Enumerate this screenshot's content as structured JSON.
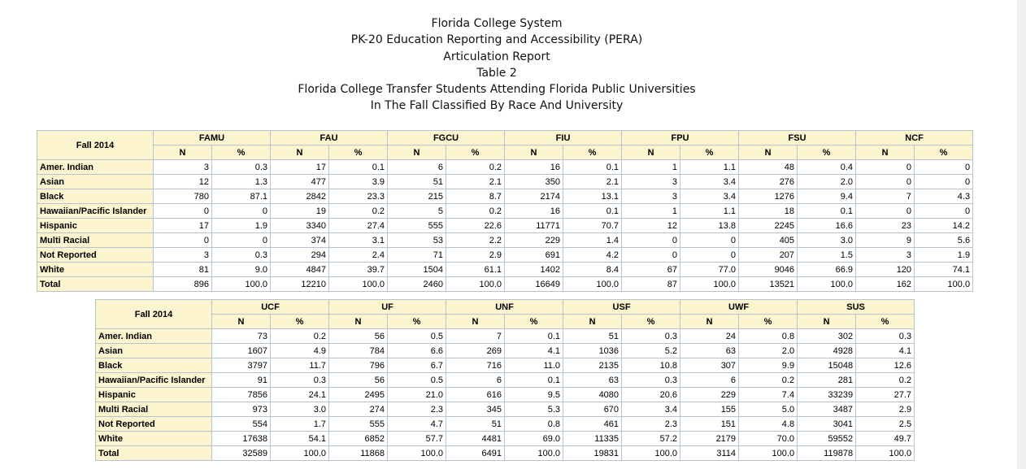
{
  "titles": [
    "Florida College System",
    "PK-20 Education Reporting and Accessibility (PERA)",
    "Articulation Report",
    "Table 2",
    "Florida College Transfer Students Attending Florida Public Universities",
    "In The Fall Classified By Race And University"
  ],
  "tables": [
    {
      "corner": "Fall 2014",
      "subheaders": [
        "N",
        "%"
      ],
      "universities": [
        "FAMU",
        "FAU",
        "FGCU",
        "FIU",
        "FPU",
        "FSU",
        "NCF"
      ],
      "rows": [
        {
          "label": "Amer. Indian",
          "values": [
            "3",
            "0.3",
            "17",
            "0.1",
            "6",
            "0.2",
            "16",
            "0.1",
            "1",
            "1.1",
            "48",
            "0.4",
            "0",
            "0"
          ]
        },
        {
          "label": "Asian",
          "values": [
            "12",
            "1.3",
            "477",
            "3.9",
            "51",
            "2.1",
            "350",
            "2.1",
            "3",
            "3.4",
            "276",
            "2.0",
            "0",
            "0"
          ]
        },
        {
          "label": "Black",
          "values": [
            "780",
            "87.1",
            "2842",
            "23.3",
            "215",
            "8.7",
            "2174",
            "13.1",
            "3",
            "3.4",
            "1276",
            "9.4",
            "7",
            "4.3"
          ]
        },
        {
          "label": "Hawaiian/Pacific Islander",
          "values": [
            "0",
            "0",
            "19",
            "0.2",
            "5",
            "0.2",
            "16",
            "0.1",
            "1",
            "1.1",
            "18",
            "0.1",
            "0",
            "0"
          ]
        },
        {
          "label": "Hispanic",
          "values": [
            "17",
            "1.9",
            "3340",
            "27.4",
            "555",
            "22.6",
            "11771",
            "70.7",
            "12",
            "13.8",
            "2245",
            "16.6",
            "23",
            "14.2"
          ]
        },
        {
          "label": "Multi Racial",
          "values": [
            "0",
            "0",
            "374",
            "3.1",
            "53",
            "2.2",
            "229",
            "1.4",
            "0",
            "0",
            "405",
            "3.0",
            "9",
            "5.6"
          ]
        },
        {
          "label": "Not Reported",
          "values": [
            "3",
            "0.3",
            "294",
            "2.4",
            "71",
            "2.9",
            "691",
            "4.2",
            "0",
            "0",
            "207",
            "1.5",
            "3",
            "1.9"
          ]
        },
        {
          "label": "White",
          "values": [
            "81",
            "9.0",
            "4847",
            "39.7",
            "1504",
            "61.1",
            "1402",
            "8.4",
            "67",
            "77.0",
            "9046",
            "66.9",
            "120",
            "74.1"
          ]
        },
        {
          "label": "Total",
          "values": [
            "896",
            "100.0",
            "12210",
            "100.0",
            "2460",
            "100.0",
            "16649",
            "100.0",
            "87",
            "100.0",
            "13521",
            "100.0",
            "162",
            "100.0"
          ]
        }
      ]
    },
    {
      "corner": "Fall 2014",
      "subheaders": [
        "N",
        "%"
      ],
      "universities": [
        "UCF",
        "UF",
        "UNF",
        "USF",
        "UWF",
        "SUS"
      ],
      "rows": [
        {
          "label": "Amer. Indian",
          "values": [
            "73",
            "0.2",
            "56",
            "0.5",
            "7",
            "0.1",
            "51",
            "0.3",
            "24",
            "0.8",
            "302",
            "0.3"
          ]
        },
        {
          "label": "Asian",
          "values": [
            "1607",
            "4.9",
            "784",
            "6.6",
            "269",
            "4.1",
            "1036",
            "5.2",
            "63",
            "2.0",
            "4928",
            "4.1"
          ]
        },
        {
          "label": "Black",
          "values": [
            "3797",
            "11.7",
            "796",
            "6.7",
            "716",
            "11.0",
            "2135",
            "10.8",
            "307",
            "9.9",
            "15048",
            "12.6"
          ]
        },
        {
          "label": "Hawaiian/Pacific Islander",
          "values": [
            "91",
            "0.3",
            "56",
            "0.5",
            "6",
            "0.1",
            "63",
            "0.3",
            "6",
            "0.2",
            "281",
            "0.2"
          ]
        },
        {
          "label": "Hispanic",
          "values": [
            "7856",
            "24.1",
            "2495",
            "21.0",
            "616",
            "9.5",
            "4080",
            "20.6",
            "229",
            "7.4",
            "33239",
            "27.7"
          ]
        },
        {
          "label": "Multi Racial",
          "values": [
            "973",
            "3.0",
            "274",
            "2.3",
            "345",
            "5.3",
            "670",
            "3.4",
            "155",
            "5.0",
            "3487",
            "2.9"
          ]
        },
        {
          "label": "Not Reported",
          "values": [
            "554",
            "1.7",
            "555",
            "4.7",
            "51",
            "0.8",
            "461",
            "2.3",
            "151",
            "4.8",
            "3041",
            "2.5"
          ]
        },
        {
          "label": "White",
          "values": [
            "17638",
            "54.1",
            "6852",
            "57.7",
            "4481",
            "69.0",
            "11335",
            "57.2",
            "2179",
            "70.0",
            "59552",
            "49.7"
          ]
        },
        {
          "label": "Total",
          "values": [
            "32589",
            "100.0",
            "11868",
            "100.0",
            "6491",
            "100.0",
            "19831",
            "100.0",
            "3114",
            "100.0",
            "119878",
            "100.0"
          ]
        }
      ]
    }
  ]
}
